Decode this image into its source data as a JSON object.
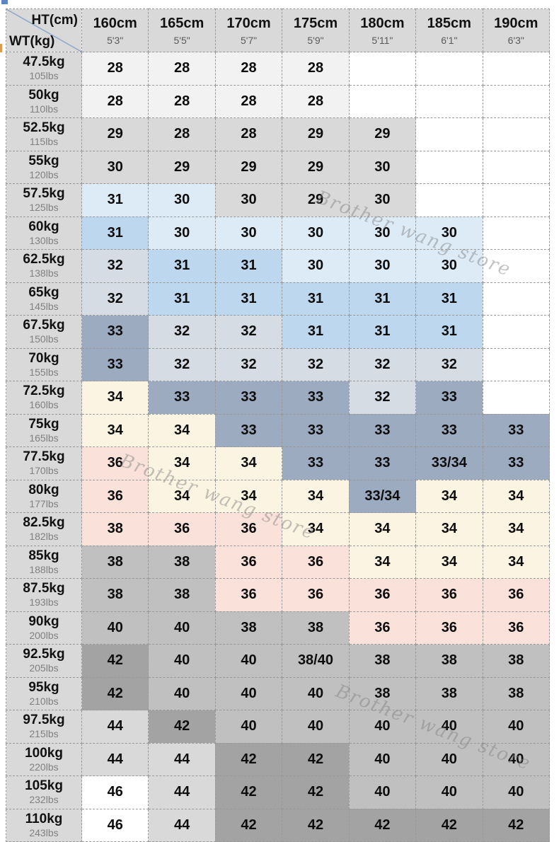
{
  "chart_data": {
    "type": "table",
    "description": "Pants size chart: waist size by height (columns) and weight (rows)",
    "corner": {
      "top_right": "HT(cm)",
      "bottom_left": "WT(kg)"
    },
    "columns": [
      {
        "cm": "160cm",
        "ft": "5'3\""
      },
      {
        "cm": "165cm",
        "ft": "5'5\""
      },
      {
        "cm": "170cm",
        "ft": "5'7\""
      },
      {
        "cm": "175cm",
        "ft": "5'9\""
      },
      {
        "cm": "180cm",
        "ft": "5'11\""
      },
      {
        "cm": "185cm",
        "ft": "6'1\""
      },
      {
        "cm": "190cm",
        "ft": "6'3\""
      }
    ],
    "rows": [
      {
        "kg": "47.5kg",
        "lbs": "105lbs",
        "cells": [
          {
            "v": "28",
            "c": "xl"
          },
          {
            "v": "28",
            "c": "xl"
          },
          {
            "v": "28",
            "c": "xl"
          },
          {
            "v": "28",
            "c": "xl"
          },
          {
            "v": "",
            "c": "w"
          },
          {
            "v": "",
            "c": "w"
          },
          {
            "v": "",
            "c": "w"
          }
        ]
      },
      {
        "kg": "50kg",
        "lbs": "110lbs",
        "cells": [
          {
            "v": "28",
            "c": "xl"
          },
          {
            "v": "28",
            "c": "xl"
          },
          {
            "v": "28",
            "c": "xl"
          },
          {
            "v": "28",
            "c": "xl"
          },
          {
            "v": "",
            "c": "w"
          },
          {
            "v": "",
            "c": "w"
          },
          {
            "v": "",
            "c": "w"
          }
        ]
      },
      {
        "kg": "52.5kg",
        "lbs": "115lbs",
        "cells": [
          {
            "v": "29",
            "c": "lg"
          },
          {
            "v": "28",
            "c": "lg"
          },
          {
            "v": "28",
            "c": "lg"
          },
          {
            "v": "29",
            "c": "lg"
          },
          {
            "v": "29",
            "c": "lg"
          },
          {
            "v": "",
            "c": "w"
          },
          {
            "v": "",
            "c": "w"
          }
        ]
      },
      {
        "kg": "55kg",
        "lbs": "120lbs",
        "cells": [
          {
            "v": "30",
            "c": "lg"
          },
          {
            "v": "29",
            "c": "lg"
          },
          {
            "v": "29",
            "c": "lg"
          },
          {
            "v": "29",
            "c": "lg"
          },
          {
            "v": "30",
            "c": "lg"
          },
          {
            "v": "",
            "c": "w"
          },
          {
            "v": "",
            "c": "w"
          }
        ]
      },
      {
        "kg": "57.5kg",
        "lbs": "125lbs",
        "cells": [
          {
            "v": "31",
            "c": "lb"
          },
          {
            "v": "30",
            "c": "lb"
          },
          {
            "v": "30",
            "c": "lg"
          },
          {
            "v": "29",
            "c": "lg"
          },
          {
            "v": "30",
            "c": "lg"
          },
          {
            "v": "",
            "c": "w"
          },
          {
            "v": "",
            "c": "w"
          }
        ]
      },
      {
        "kg": "60kg",
        "lbs": "130lbs",
        "cells": [
          {
            "v": "31",
            "c": "b"
          },
          {
            "v": "30",
            "c": "lb"
          },
          {
            "v": "30",
            "c": "lb"
          },
          {
            "v": "30",
            "c": "lb"
          },
          {
            "v": "30",
            "c": "lb"
          },
          {
            "v": "30",
            "c": "lb"
          },
          {
            "v": "",
            "c": "w"
          }
        ]
      },
      {
        "kg": "62.5kg",
        "lbs": "138lbs",
        "cells": [
          {
            "v": "32",
            "c": "gbl"
          },
          {
            "v": "31",
            "c": "b"
          },
          {
            "v": "31",
            "c": "b"
          },
          {
            "v": "30",
            "c": "lb"
          },
          {
            "v": "30",
            "c": "lb"
          },
          {
            "v": "30",
            "c": "lb"
          },
          {
            "v": "",
            "c": "w"
          }
        ]
      },
      {
        "kg": "65kg",
        "lbs": "145lbs",
        "cells": [
          {
            "v": "32",
            "c": "gbl"
          },
          {
            "v": "31",
            "c": "b"
          },
          {
            "v": "31",
            "c": "b"
          },
          {
            "v": "31",
            "c": "b"
          },
          {
            "v": "31",
            "c": "b"
          },
          {
            "v": "31",
            "c": "b"
          },
          {
            "v": "",
            "c": "w"
          }
        ]
      },
      {
        "kg": "67.5kg",
        "lbs": "150lbs",
        "cells": [
          {
            "v": "33",
            "c": "gbd"
          },
          {
            "v": "32",
            "c": "gbl"
          },
          {
            "v": "32",
            "c": "gbl"
          },
          {
            "v": "31",
            "c": "b"
          },
          {
            "v": "31",
            "c": "b"
          },
          {
            "v": "31",
            "c": "b"
          },
          {
            "v": "",
            "c": "w"
          }
        ]
      },
      {
        "kg": "70kg",
        "lbs": "155lbs",
        "cells": [
          {
            "v": "33",
            "c": "gbd"
          },
          {
            "v": "32",
            "c": "gbl"
          },
          {
            "v": "32",
            "c": "gbl"
          },
          {
            "v": "32",
            "c": "gbl"
          },
          {
            "v": "32",
            "c": "gbl"
          },
          {
            "v": "32",
            "c": "gbl"
          },
          {
            "v": "",
            "c": "w"
          }
        ]
      },
      {
        "kg": "72.5kg",
        "lbs": "160lbs",
        "cells": [
          {
            "v": "34",
            "c": "cr"
          },
          {
            "v": "33",
            "c": "gbd"
          },
          {
            "v": "33",
            "c": "gbd"
          },
          {
            "v": "33",
            "c": "gbd"
          },
          {
            "v": "32",
            "c": "gbl"
          },
          {
            "v": "33",
            "c": "gbd"
          },
          {
            "v": "",
            "c": "w"
          }
        ]
      },
      {
        "kg": "75kg",
        "lbs": "165lbs",
        "cells": [
          {
            "v": "34",
            "c": "cr"
          },
          {
            "v": "34",
            "c": "cr"
          },
          {
            "v": "33",
            "c": "gbd"
          },
          {
            "v": "33",
            "c": "gbd"
          },
          {
            "v": "33",
            "c": "gbd"
          },
          {
            "v": "33",
            "c": "gbd"
          },
          {
            "v": "33",
            "c": "gbd"
          }
        ]
      },
      {
        "kg": "77.5kg",
        "lbs": "170lbs",
        "cells": [
          {
            "v": "36",
            "c": "pk"
          },
          {
            "v": "34",
            "c": "cr"
          },
          {
            "v": "34",
            "c": "cr"
          },
          {
            "v": "33",
            "c": "gbd"
          },
          {
            "v": "33",
            "c": "gbd"
          },
          {
            "v": "33/34",
            "c": "gbd"
          },
          {
            "v": "33",
            "c": "gbd"
          }
        ]
      },
      {
        "kg": "80kg",
        "lbs": "177lbs",
        "cells": [
          {
            "v": "36",
            "c": "pk"
          },
          {
            "v": "34",
            "c": "cr"
          },
          {
            "v": "34",
            "c": "cr"
          },
          {
            "v": "34",
            "c": "cr"
          },
          {
            "v": "33/34",
            "c": "gbd"
          },
          {
            "v": "34",
            "c": "cr"
          },
          {
            "v": "34",
            "c": "cr"
          }
        ]
      },
      {
        "kg": "82.5kg",
        "lbs": "182lbs",
        "cells": [
          {
            "v": "38",
            "c": "pk"
          },
          {
            "v": "36",
            "c": "pk"
          },
          {
            "v": "36",
            "c": "pk"
          },
          {
            "v": "34",
            "c": "cr"
          },
          {
            "v": "34",
            "c": "cr"
          },
          {
            "v": "34",
            "c": "cr"
          },
          {
            "v": "34",
            "c": "cr"
          }
        ]
      },
      {
        "kg": "85kg",
        "lbs": "188lbs",
        "cells": [
          {
            "v": "38",
            "c": "mg"
          },
          {
            "v": "38",
            "c": "mg"
          },
          {
            "v": "36",
            "c": "pk"
          },
          {
            "v": "36",
            "c": "pk"
          },
          {
            "v": "34",
            "c": "cr"
          },
          {
            "v": "34",
            "c": "cr"
          },
          {
            "v": "34",
            "c": "cr"
          }
        ]
      },
      {
        "kg": "87.5kg",
        "lbs": "193lbs",
        "cells": [
          {
            "v": "38",
            "c": "mg"
          },
          {
            "v": "38",
            "c": "mg"
          },
          {
            "v": "36",
            "c": "pk"
          },
          {
            "v": "36",
            "c": "pk"
          },
          {
            "v": "36",
            "c": "pk"
          },
          {
            "v": "36",
            "c": "pk"
          },
          {
            "v": "36",
            "c": "pk"
          }
        ]
      },
      {
        "kg": "90kg",
        "lbs": "200lbs",
        "cells": [
          {
            "v": "40",
            "c": "mg"
          },
          {
            "v": "40",
            "c": "mg"
          },
          {
            "v": "38",
            "c": "mg"
          },
          {
            "v": "38",
            "c": "mg"
          },
          {
            "v": "36",
            "c": "pk"
          },
          {
            "v": "36",
            "c": "pk"
          },
          {
            "v": "36",
            "c": "pk"
          }
        ]
      },
      {
        "kg": "92.5kg",
        "lbs": "205lbs",
        "cells": [
          {
            "v": "42",
            "c": "dg"
          },
          {
            "v": "40",
            "c": "mg"
          },
          {
            "v": "40",
            "c": "mg"
          },
          {
            "v": "38/40",
            "c": "mg"
          },
          {
            "v": "38",
            "c": "mg"
          },
          {
            "v": "38",
            "c": "mg"
          },
          {
            "v": "38",
            "c": "mg"
          }
        ]
      },
      {
        "kg": "95kg",
        "lbs": "210lbs",
        "cells": [
          {
            "v": "42",
            "c": "dg"
          },
          {
            "v": "40",
            "c": "mg"
          },
          {
            "v": "40",
            "c": "mg"
          },
          {
            "v": "40",
            "c": "mg"
          },
          {
            "v": "38",
            "c": "mg"
          },
          {
            "v": "38",
            "c": "mg"
          },
          {
            "v": "38",
            "c": "mg"
          }
        ]
      },
      {
        "kg": "97.5kg",
        "lbs": "215lbs",
        "cells": [
          {
            "v": "44",
            "c": "lg"
          },
          {
            "v": "42",
            "c": "dg"
          },
          {
            "v": "40",
            "c": "mg"
          },
          {
            "v": "40",
            "c": "mg"
          },
          {
            "v": "40",
            "c": "mg"
          },
          {
            "v": "40",
            "c": "mg"
          },
          {
            "v": "40",
            "c": "mg"
          }
        ]
      },
      {
        "kg": "100kg",
        "lbs": "220lbs",
        "cells": [
          {
            "v": "44",
            "c": "lg"
          },
          {
            "v": "44",
            "c": "lg"
          },
          {
            "v": "42",
            "c": "dg"
          },
          {
            "v": "42",
            "c": "dg"
          },
          {
            "v": "40",
            "c": "mg"
          },
          {
            "v": "40",
            "c": "mg"
          },
          {
            "v": "40",
            "c": "mg"
          }
        ]
      },
      {
        "kg": "105kg",
        "lbs": "232lbs",
        "cells": [
          {
            "v": "46",
            "c": "w"
          },
          {
            "v": "44",
            "c": "lg"
          },
          {
            "v": "42",
            "c": "dg"
          },
          {
            "v": "42",
            "c": "dg"
          },
          {
            "v": "40",
            "c": "mg"
          },
          {
            "v": "40",
            "c": "mg"
          },
          {
            "v": "40",
            "c": "mg"
          }
        ]
      },
      {
        "kg": "110kg",
        "lbs": "243lbs",
        "cells": [
          {
            "v": "46",
            "c": "w"
          },
          {
            "v": "44",
            "c": "lg"
          },
          {
            "v": "42",
            "c": "dg"
          },
          {
            "v": "42",
            "c": "dg"
          },
          {
            "v": "42",
            "c": "dg"
          },
          {
            "v": "42",
            "c": "dg"
          },
          {
            "v": "42",
            "c": "dg"
          }
        ]
      }
    ]
  },
  "palette": {
    "xl": "#f2f2f2",
    "lg": "#d9d9d9",
    "mg": "#c0c0c0",
    "dg": "#a3a3a3",
    "w": "#ffffff",
    "lb": "#ddebf7",
    "b": "#bdd7ee",
    "gbl": "#d6dce4",
    "gbd": "#9dabc0",
    "cr": "#fcf4e2",
    "pk": "#fae2da",
    "header_bg": "#d9d9d9",
    "border": "#999999",
    "diagonal": "#8fa9c9",
    "text": "#111111",
    "header_subtext": "#595959",
    "row_subtext": "#808080",
    "watermark": "#8a8a8a",
    "artifact_blue": "#5b87c5",
    "artifact_orange": "#e09a4e"
  },
  "watermark": {
    "text": "Brother wang store"
  }
}
